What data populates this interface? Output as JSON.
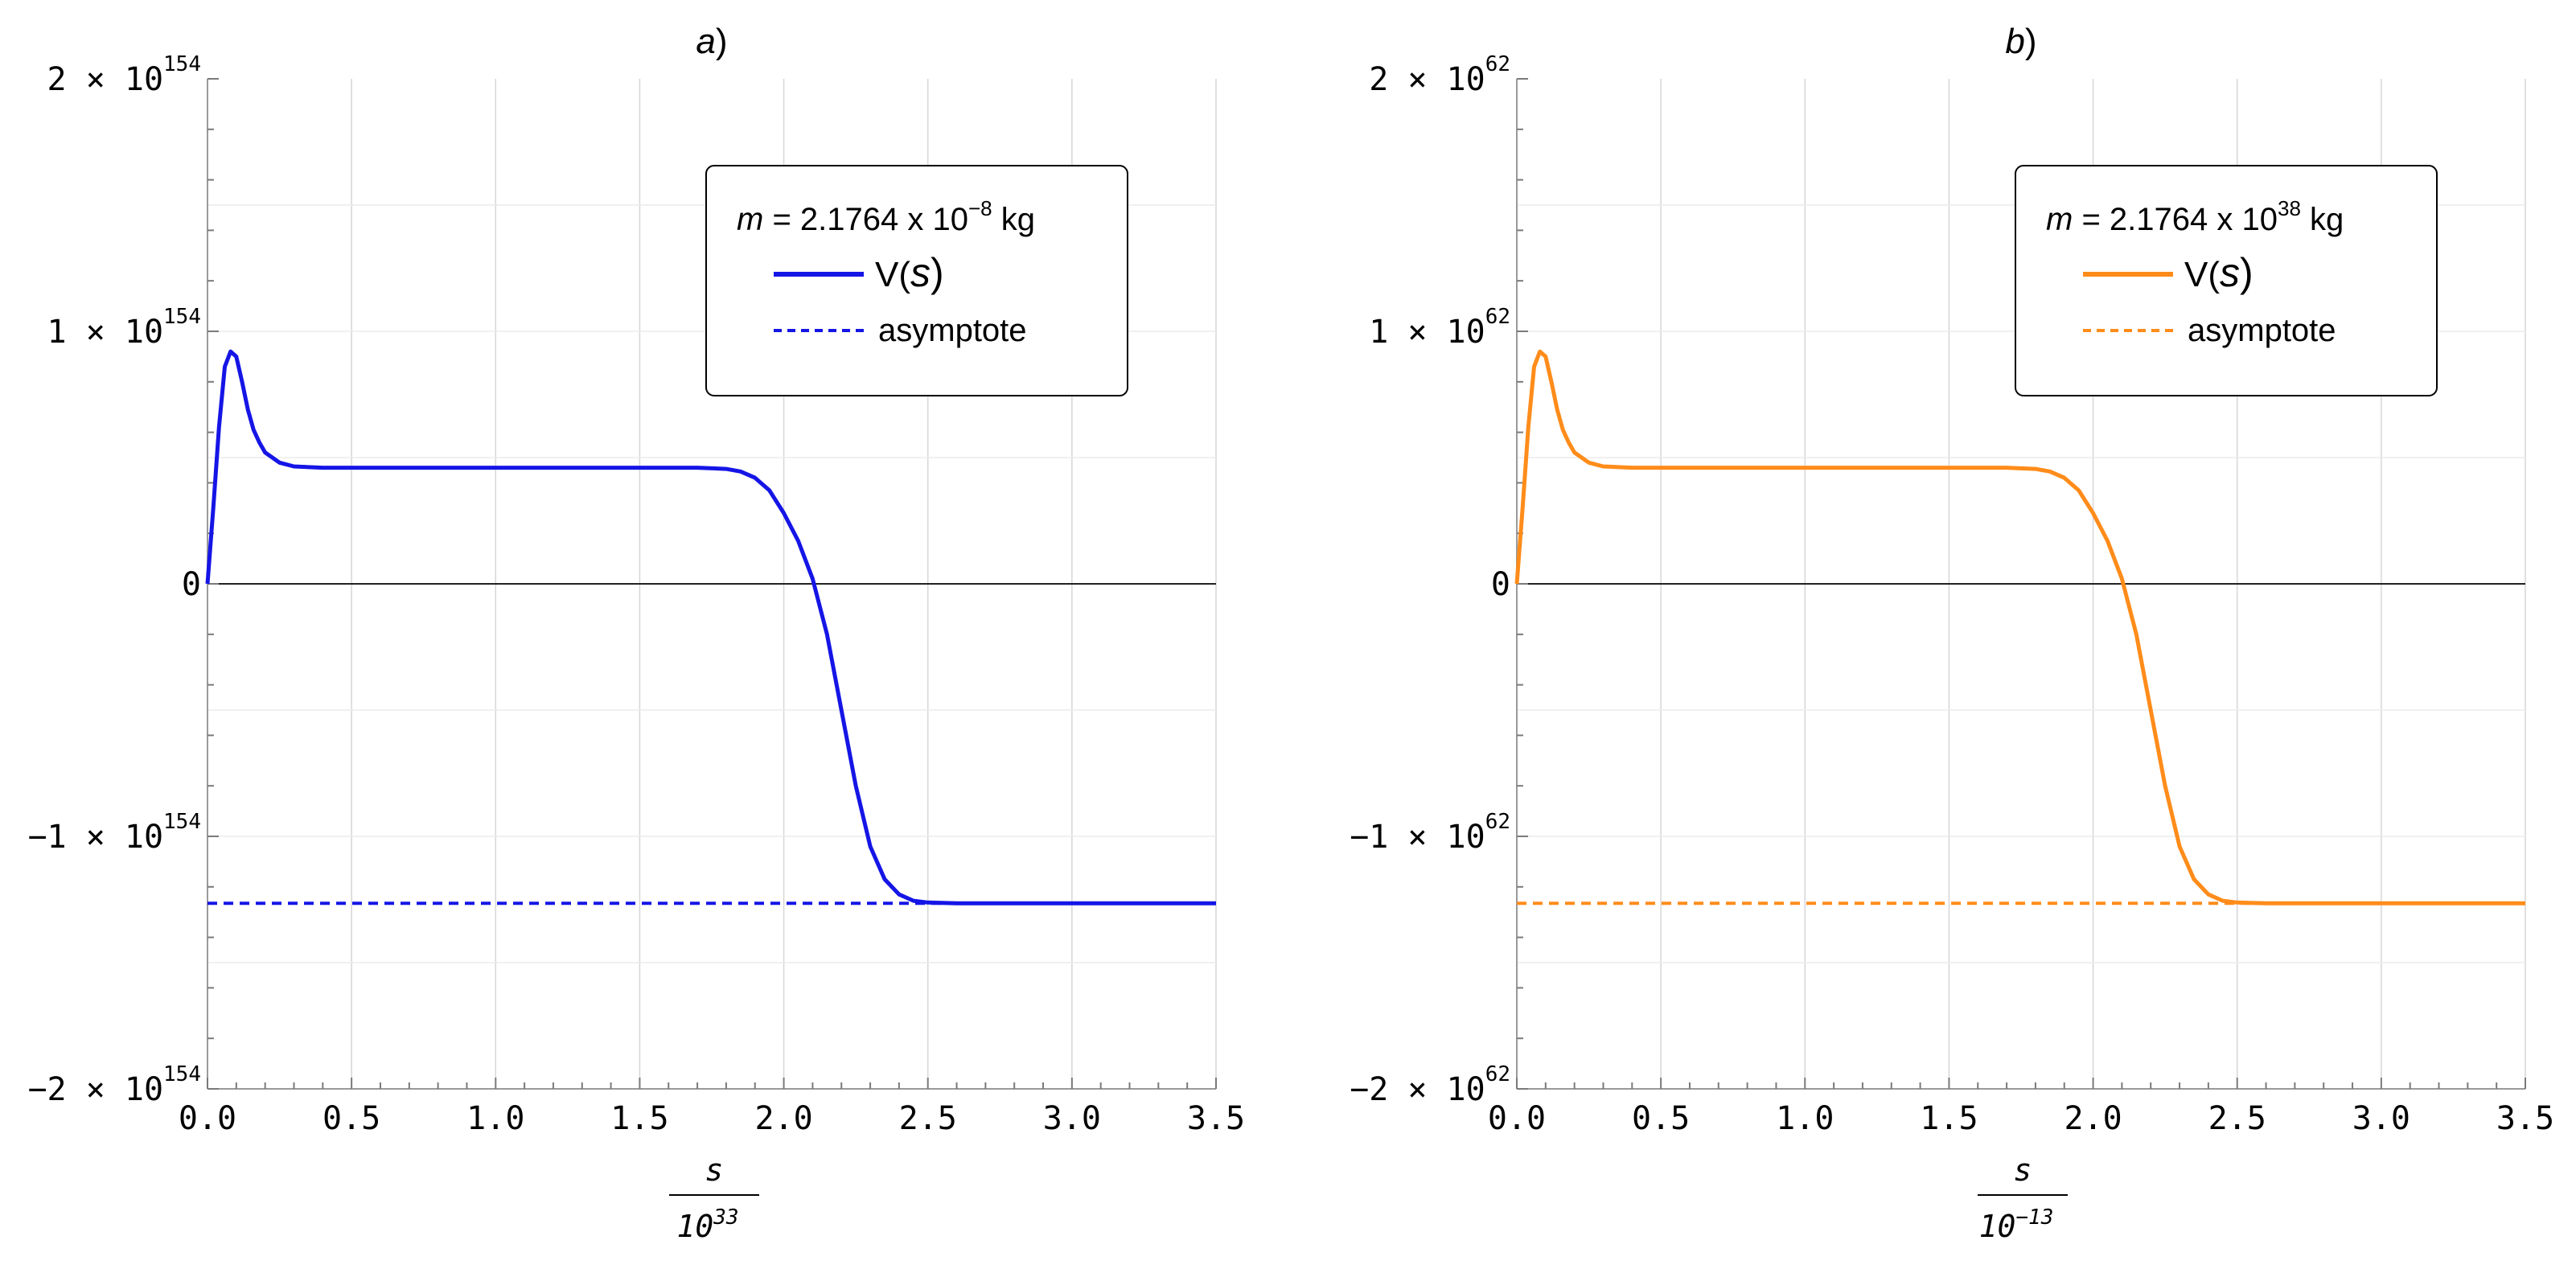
{
  "chart_data": [
    {
      "panel": "a)",
      "type": "line",
      "title": "a)",
      "title_letter": "a",
      "title_suffix": ")",
      "xlabel": "s",
      "xlabel_denominator_base": "10",
      "xlabel_denominator_exp": "33",
      "ylabel": "",
      "xlim": [
        0,
        3.5
      ],
      "ylim": [
        -2,
        2
      ],
      "y_unit_exponent": "154",
      "x_ticks": [
        "0.0",
        "0.5",
        "1.0",
        "1.5",
        "2.0",
        "2.5",
        "3.0",
        "3.5"
      ],
      "y_ticks": [
        {
          "value": 2,
          "label": "2 × 10",
          "exp": "154"
        },
        {
          "value": 1,
          "label": "1 × 10",
          "exp": "154"
        },
        {
          "value": 0,
          "label": "0",
          "exp": ""
        },
        {
          "value": -1,
          "label": "−1 × 10",
          "exp": "154"
        },
        {
          "value": -2,
          "label": "−2 × 10",
          "exp": "154"
        }
      ],
      "legend": {
        "placement": "top-right",
        "mass_prefix": "m",
        "mass_value": " = 2.1764 x 10",
        "mass_exp": "−8",
        "mass_unit": " kg",
        "series_label_prefix": "V(",
        "series_label_var": "s",
        "series_label_suffix": ")",
        "asymptote_label": "asymptote"
      },
      "color": "#1515e6",
      "series": [
        {
          "name": "V(s)",
          "x": [
            0,
            0.02,
            0.04,
            0.06,
            0.08,
            0.1,
            0.12,
            0.14,
            0.16,
            0.18,
            0.2,
            0.25,
            0.3,
            0.4,
            0.5,
            0.8,
            1.0,
            1.5,
            1.7,
            1.8,
            1.85,
            1.9,
            1.95,
            2.0,
            2.05,
            2.1,
            2.15,
            2.2,
            2.25,
            2.3,
            2.35,
            2.4,
            2.45,
            2.5,
            2.6,
            2.7,
            3.0,
            3.5
          ],
          "y": [
            0,
            0.3,
            0.62,
            0.86,
            0.92,
            0.9,
            0.8,
            0.69,
            0.61,
            0.56,
            0.52,
            0.48,
            0.465,
            0.46,
            0.46,
            0.46,
            0.46,
            0.46,
            0.46,
            0.455,
            0.445,
            0.42,
            0.37,
            0.28,
            0.17,
            0.02,
            -0.2,
            -0.5,
            -0.8,
            -1.04,
            -1.17,
            -1.23,
            -1.255,
            -1.262,
            -1.265,
            -1.265,
            -1.265,
            -1.265
          ]
        },
        {
          "name": "asymptote",
          "style": "dashed",
          "x": [
            0,
            3.5
          ],
          "y": [
            -1.265,
            -1.265
          ]
        }
      ],
      "grid": true
    },
    {
      "panel": "b)",
      "type": "line",
      "title": "b)",
      "title_letter": "b",
      "title_suffix": ")",
      "xlabel": "s",
      "xlabel_denominator_base": "10",
      "xlabel_denominator_exp": "−13",
      "ylabel": "",
      "xlim": [
        0,
        3.5
      ],
      "ylim": [
        -2,
        2
      ],
      "y_unit_exponent": "62",
      "x_ticks": [
        "0.0",
        "0.5",
        "1.0",
        "1.5",
        "2.0",
        "2.5",
        "3.0",
        "3.5"
      ],
      "y_ticks": [
        {
          "value": 2,
          "label": "2 × 10",
          "exp": "62"
        },
        {
          "value": 1,
          "label": "1 × 10",
          "exp": "62"
        },
        {
          "value": 0,
          "label": "0",
          "exp": ""
        },
        {
          "value": -1,
          "label": "−1 × 10",
          "exp": "62"
        },
        {
          "value": -2,
          "label": "−2 × 10",
          "exp": "62"
        }
      ],
      "legend": {
        "placement": "top-right",
        "mass_prefix": "m",
        "mass_value": " = 2.1764 x 10",
        "mass_exp": "38",
        "mass_unit": " kg",
        "series_label_prefix": "V(",
        "series_label_var": "s",
        "series_label_suffix": ")",
        "asymptote_label": "asymptote"
      },
      "color": "#ff8c1a",
      "series": [
        {
          "name": "V(s)",
          "x": [
            0,
            0.02,
            0.04,
            0.06,
            0.08,
            0.1,
            0.12,
            0.14,
            0.16,
            0.18,
            0.2,
            0.25,
            0.3,
            0.4,
            0.5,
            0.8,
            1.0,
            1.5,
            1.7,
            1.8,
            1.85,
            1.9,
            1.95,
            2.0,
            2.05,
            2.1,
            2.15,
            2.2,
            2.25,
            2.3,
            2.35,
            2.4,
            2.45,
            2.5,
            2.6,
            2.7,
            3.0,
            3.5
          ],
          "y": [
            0,
            0.3,
            0.62,
            0.86,
            0.92,
            0.9,
            0.8,
            0.69,
            0.61,
            0.56,
            0.52,
            0.48,
            0.465,
            0.46,
            0.46,
            0.46,
            0.46,
            0.46,
            0.46,
            0.455,
            0.445,
            0.42,
            0.37,
            0.28,
            0.17,
            0.02,
            -0.2,
            -0.5,
            -0.8,
            -1.04,
            -1.17,
            -1.23,
            -1.255,
            -1.262,
            -1.265,
            -1.265,
            -1.265,
            -1.265
          ]
        },
        {
          "name": "asymptote",
          "style": "dashed",
          "x": [
            0,
            3.5
          ],
          "y": [
            -1.265,
            -1.265
          ]
        }
      ],
      "grid": true
    }
  ]
}
